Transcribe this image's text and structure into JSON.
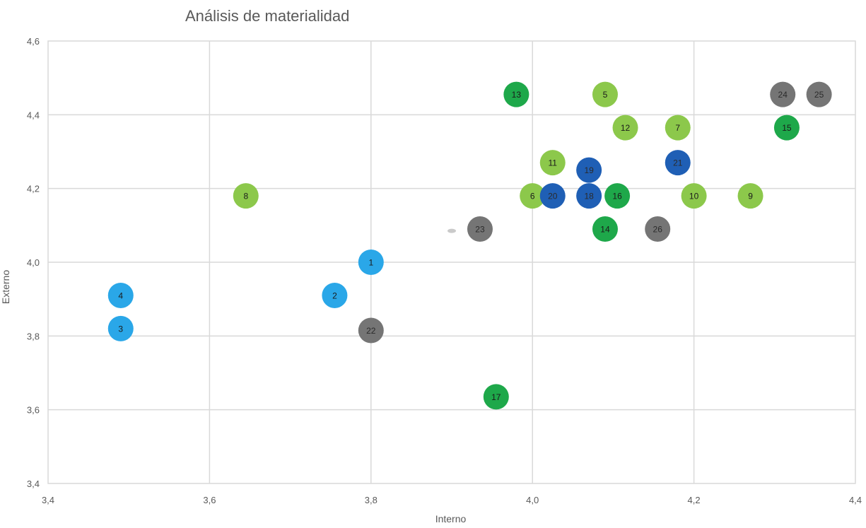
{
  "chart_data": {
    "type": "scatter",
    "title": "Análisis de materialidad",
    "xlabel": "Interno",
    "ylabel": "Externo",
    "xlim": [
      3.4,
      4.4
    ],
    "ylim": [
      3.4,
      4.6
    ],
    "xticks": [
      "3,4",
      "3,6",
      "3,8",
      "4,0",
      "4,2",
      "4,4"
    ],
    "yticks": [
      "3,4",
      "3,6",
      "3,8",
      "4,0",
      "4,2",
      "4,4",
      "4,6"
    ],
    "grid": true,
    "colors": {
      "light_blue": "#2aa7e8",
      "light_green": "#8cc84b",
      "green": "#1ea84a",
      "dark_blue": "#1f5fb5",
      "gray": "#757575"
    },
    "points": [
      {
        "label": "1",
        "x": 3.8,
        "y": 4.0,
        "color": "light_blue"
      },
      {
        "label": "2",
        "x": 3.755,
        "y": 3.91,
        "color": "light_blue"
      },
      {
        "label": "3",
        "x": 3.49,
        "y": 3.82,
        "color": "light_blue"
      },
      {
        "label": "4",
        "x": 3.49,
        "y": 3.91,
        "color": "light_blue"
      },
      {
        "label": "5",
        "x": 4.09,
        "y": 4.455,
        "color": "light_green"
      },
      {
        "label": "6",
        "x": 4.0,
        "y": 4.18,
        "color": "light_green"
      },
      {
        "label": "7",
        "x": 4.18,
        "y": 4.365,
        "color": "light_green"
      },
      {
        "label": "8",
        "x": 3.645,
        "y": 4.18,
        "color": "light_green"
      },
      {
        "label": "9",
        "x": 4.27,
        "y": 4.18,
        "color": "light_green"
      },
      {
        "label": "10",
        "x": 4.2,
        "y": 4.18,
        "color": "light_green"
      },
      {
        "label": "11",
        "x": 4.025,
        "y": 4.27,
        "color": "light_green"
      },
      {
        "label": "12",
        "x": 4.115,
        "y": 4.365,
        "color": "light_green"
      },
      {
        "label": "13",
        "x": 3.98,
        "y": 4.455,
        "color": "green"
      },
      {
        "label": "14",
        "x": 4.09,
        "y": 4.09,
        "color": "green"
      },
      {
        "label": "15",
        "x": 4.315,
        "y": 4.365,
        "color": "green"
      },
      {
        "label": "16",
        "x": 4.105,
        "y": 4.18,
        "color": "green"
      },
      {
        "label": "17",
        "x": 3.955,
        "y": 3.635,
        "color": "green"
      },
      {
        "label": "18",
        "x": 4.07,
        "y": 4.18,
        "color": "dark_blue"
      },
      {
        "label": "19",
        "x": 4.07,
        "y": 4.25,
        "color": "dark_blue"
      },
      {
        "label": "20",
        "x": 4.025,
        "y": 4.18,
        "color": "dark_blue"
      },
      {
        "label": "21",
        "x": 4.18,
        "y": 4.27,
        "color": "dark_blue"
      },
      {
        "label": "22",
        "x": 3.8,
        "y": 3.815,
        "color": "gray"
      },
      {
        "label": "23",
        "x": 3.935,
        "y": 4.09,
        "color": "gray"
      },
      {
        "label": "24",
        "x": 4.31,
        "y": 4.455,
        "color": "gray"
      },
      {
        "label": "25",
        "x": 4.355,
        "y": 4.455,
        "color": "gray"
      },
      {
        "label": "26",
        "x": 4.155,
        "y": 4.09,
        "color": "gray"
      }
    ]
  }
}
